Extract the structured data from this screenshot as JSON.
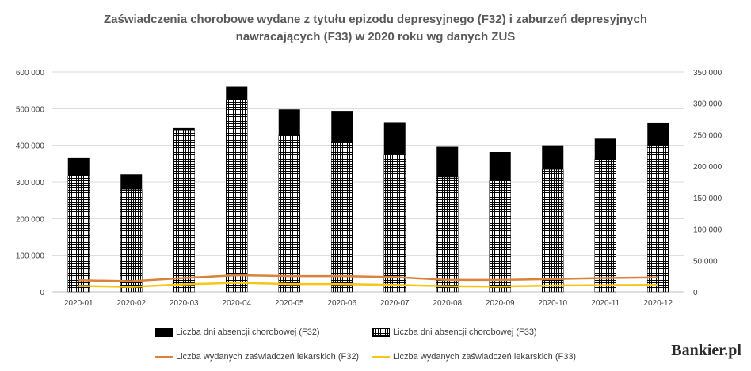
{
  "title_lines": [
    "Zaświadczenia chorobowe wydane z tytułu epizodu depresyjnego (F32) i zaburzeń depresyjnych",
    "nawracających (F33) w 2020 roku wg danych ZUS"
  ],
  "brand": "Bankier.pl",
  "colors": {
    "f32_bar": "#000000",
    "f33_bar": "#000000",
    "f32_line": "#d9823b",
    "f33_line": "#f5c518",
    "grid": "#d9d9d9"
  },
  "chart_data": {
    "type": "bar",
    "categories": [
      "2020-01",
      "2020-02",
      "2020-03",
      "2020-04",
      "2020-05",
      "2020-06",
      "2020-07",
      "2020-08",
      "2020-09",
      "2020-10",
      "2020-11",
      "2020-12"
    ],
    "left_axis": {
      "min": 0,
      "max": 600000,
      "ticks": [
        "0",
        "100 000",
        "200 000",
        "300 000",
        "400 000",
        "500 000",
        "600 000"
      ]
    },
    "right_axis": {
      "min": 0,
      "max": 350000,
      "ticks": [
        "0",
        "50 000",
        "100 000",
        "150 000",
        "200 000",
        "250 000",
        "300 000",
        "350 000"
      ]
    },
    "stacked_bars": true,
    "series": [
      {
        "name": "Liczba dni absencji chorobowej (F33)",
        "axis": "left",
        "pattern": "grid",
        "values": [
          317000,
          280000,
          442000,
          523000,
          427000,
          409000,
          374000,
          313000,
          305000,
          334000,
          362000,
          398000
        ]
      },
      {
        "name": "Liczba dni absencji chorobowej (F32)",
        "axis": "left",
        "pattern": "solid",
        "values": [
          48000,
          41000,
          5000,
          37000,
          71000,
          85000,
          89000,
          83000,
          77000,
          66000,
          56000,
          64000
        ]
      },
      {
        "name": "Liczba wydanych zaświadczeń lekarskich (F32)",
        "axis": "right",
        "type": "line",
        "values": [
          18500,
          17000,
          22000,
          26500,
          25000,
          25000,
          23500,
          19000,
          19000,
          20500,
          22000,
          23000
        ]
      },
      {
        "name": "Liczba wydanych zaświadczeń lekarskich (F33)",
        "axis": "right",
        "type": "line",
        "values": [
          9500,
          8000,
          12000,
          14500,
          12500,
          12500,
          11000,
          9000,
          8500,
          10000,
          10500,
          11000
        ]
      }
    ],
    "grid": true,
    "legend_position": "bottom"
  }
}
